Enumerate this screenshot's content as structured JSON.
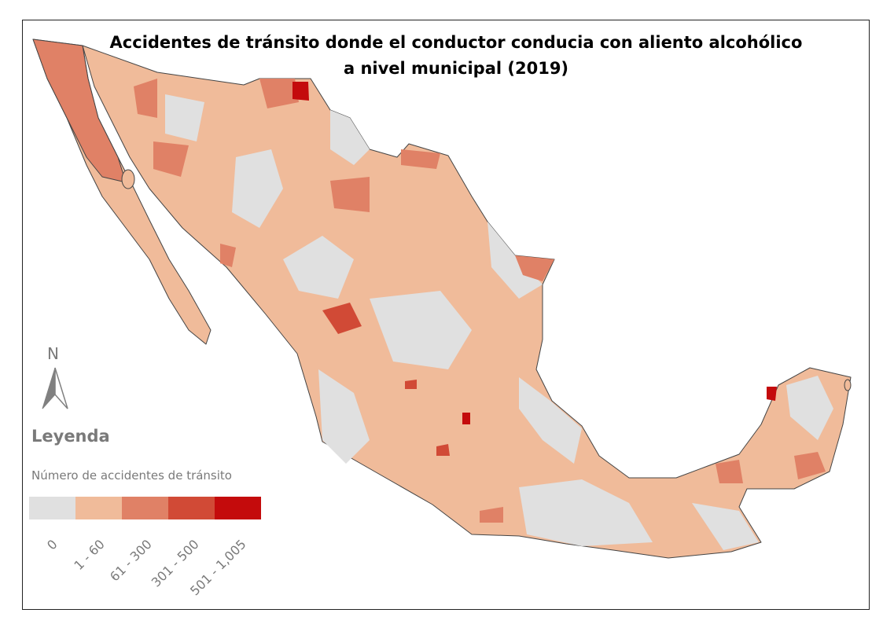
{
  "title": {
    "line1": "Accidentes de tránsito donde el conductor conducia con aliento alcohólico",
    "line2": "a nivel municipal (2019)"
  },
  "north_arrow": {
    "label": "N",
    "icon": "north-arrow-icon"
  },
  "legend": {
    "title": "Leyenda",
    "subtitle": "Número de accidentes de tránsito",
    "classes": [
      {
        "label": "0",
        "color": "#e0e0e0"
      },
      {
        "label": "1 - 60",
        "color": "#f0bb9a"
      },
      {
        "label": "61 - 300",
        "color": "#e08166"
      },
      {
        "label": "301 - 500",
        "color": "#d14a36"
      },
      {
        "label": "501 - 1,005",
        "color": "#c40b0c"
      }
    ]
  }
}
